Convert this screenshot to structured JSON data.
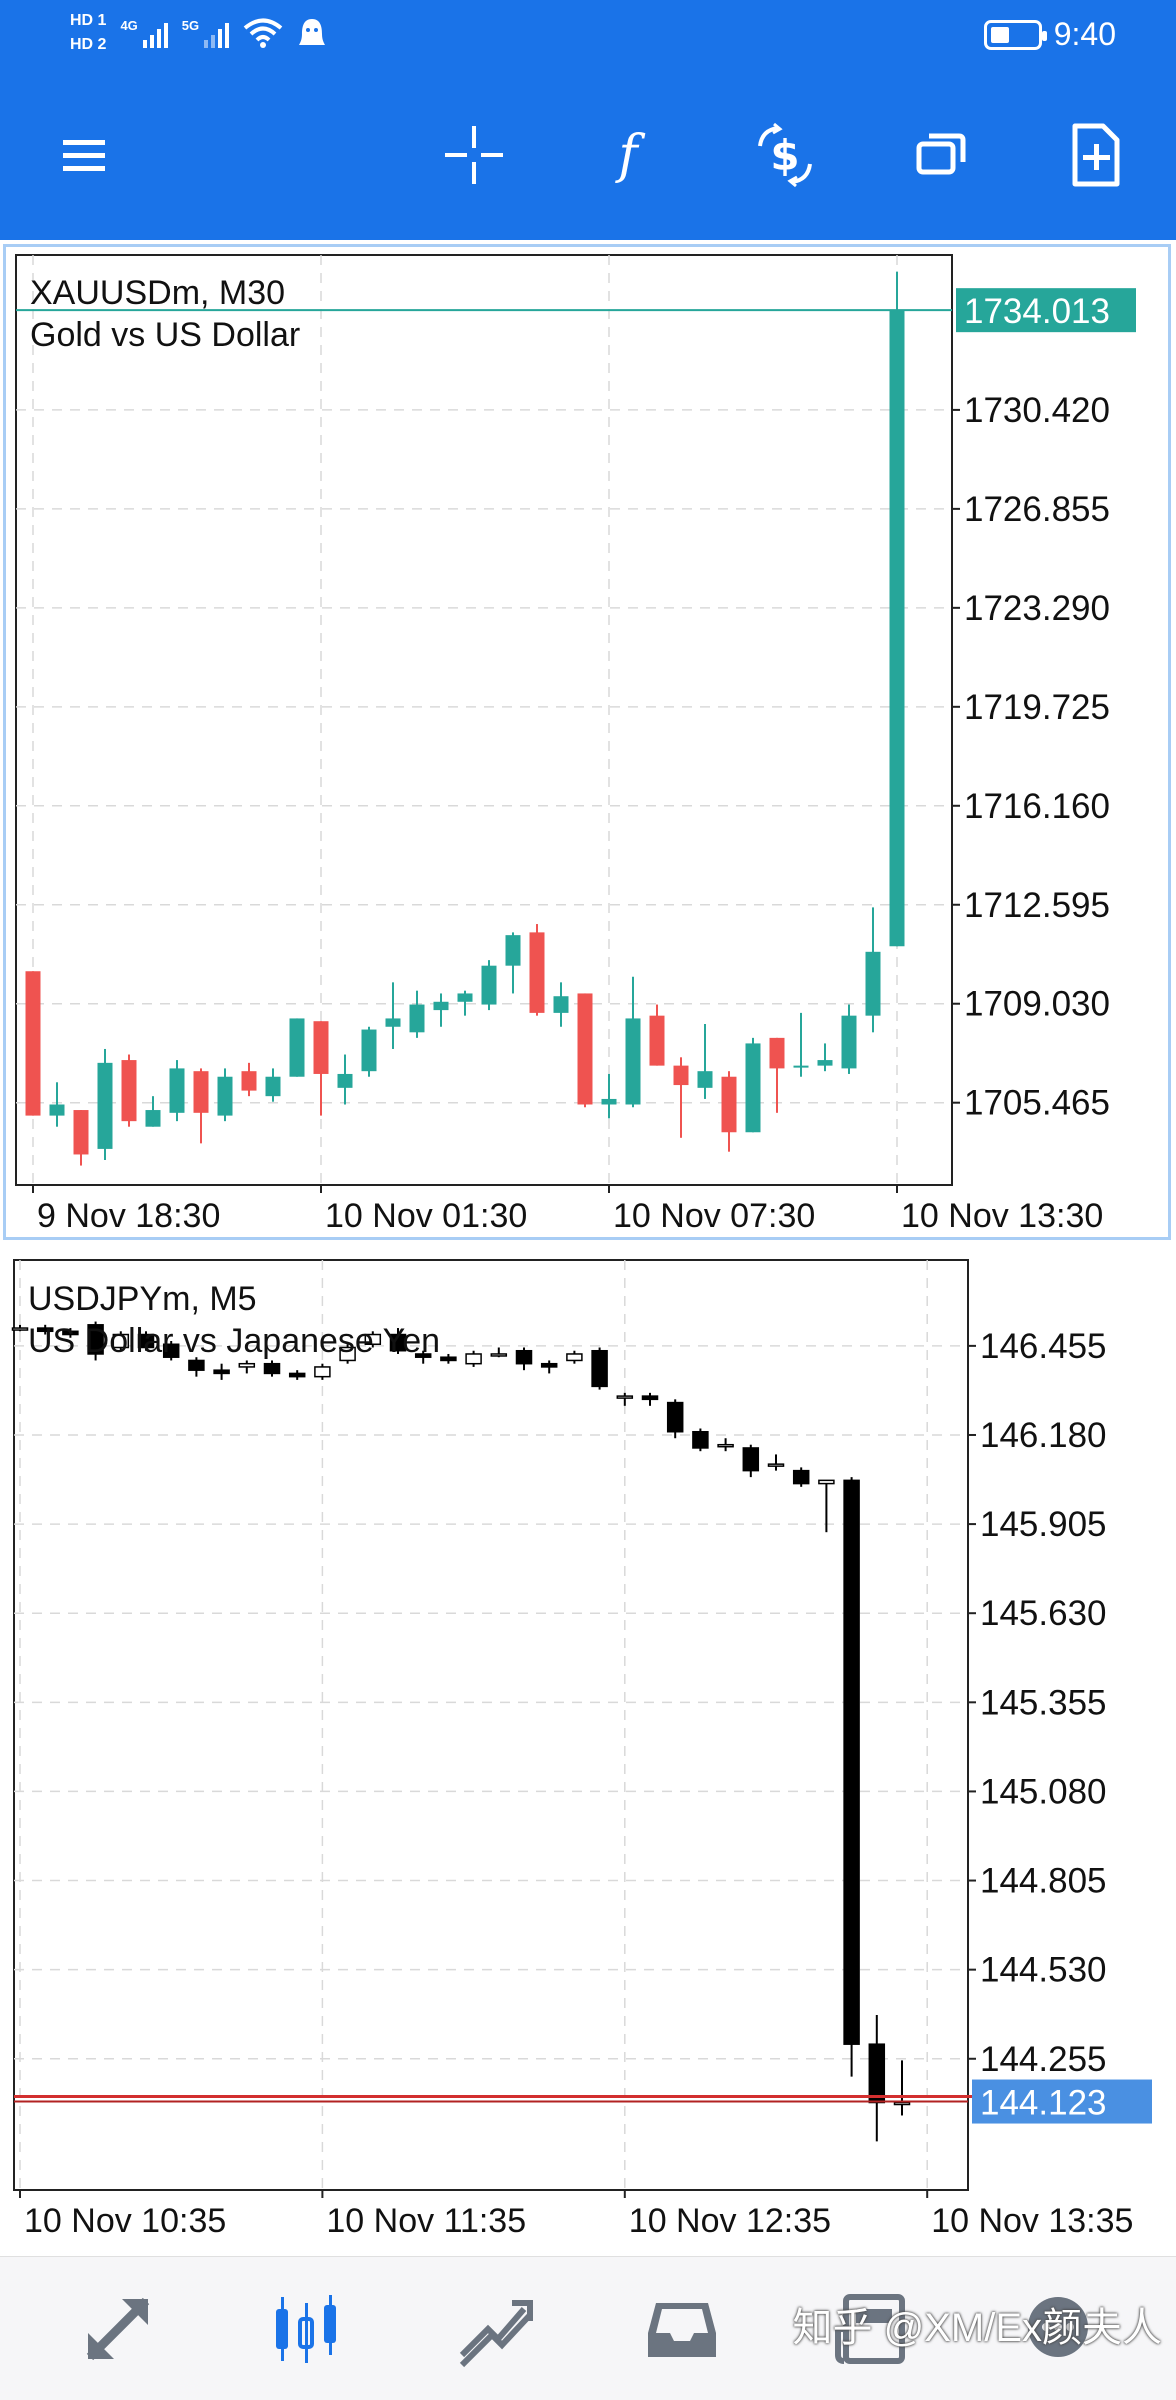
{
  "status_bar": {
    "hd1": "HD 1",
    "hd2": "HD 2",
    "net1": "4G",
    "net2": "5G",
    "time": "9:40",
    "icons": [
      "signal-icon",
      "wifi-icon",
      "notification-icon",
      "battery-icon"
    ]
  },
  "toolbar": {
    "buttons": [
      {
        "icon": "menu-icon"
      },
      {
        "icon": "crosshair-icon"
      },
      {
        "icon": "indicators-f-icon"
      },
      {
        "icon": "trade-dollar-icon"
      },
      {
        "icon": "windows-icon"
      },
      {
        "icon": "objects-add-icon"
      }
    ],
    "bg_color": "#1a73e8"
  },
  "charts": {
    "gold": {
      "symbol_line": "XAUUSDm, M30",
      "description": "Gold vs US Dollar",
      "price_tag": "1734.013",
      "price_tag_color": "#26a69a"
    },
    "usdjpy": {
      "symbol_line": "USDJPYm, M5",
      "description": "US Dollar vs Japanese Yen",
      "price_tag": "144.123",
      "price_tag_color": "#4a90e2"
    }
  },
  "chart_data": [
    {
      "type": "candlestick",
      "title": "XAUUSDm, M30",
      "subtitle": "Gold vs US Dollar",
      "ylim": [
        1702.5,
        1736.0
      ],
      "y_ticks": [
        "1730.420",
        "1726.855",
        "1723.290",
        "1719.725",
        "1716.160",
        "1712.595",
        "1709.030",
        "1705.465"
      ],
      "x_ticks": [
        "9 Nov 18:30",
        "10 Nov 01:30",
        "10 Nov 07:30",
        "10 Nov 13:30"
      ],
      "x_tick_index": [
        0,
        12,
        24,
        36
      ],
      "current_price": 1734.013,
      "up_color": "#26a69a",
      "down_color": "#ef5350",
      "candles": [
        {
          "o": 1710.2,
          "h": 1710.2,
          "l": 1705.0,
          "c": 1705.0
        },
        {
          "o": 1705.0,
          "h": 1706.2,
          "l": 1704.6,
          "c": 1705.4
        },
        {
          "o": 1705.2,
          "h": 1705.2,
          "l": 1703.2,
          "c": 1703.6
        },
        {
          "o": 1703.8,
          "h": 1707.4,
          "l": 1703.4,
          "c": 1706.9
        },
        {
          "o": 1707.0,
          "h": 1707.2,
          "l": 1704.6,
          "c": 1704.8
        },
        {
          "o": 1704.6,
          "h": 1705.7,
          "l": 1704.6,
          "c": 1705.2
        },
        {
          "o": 1705.1,
          "h": 1707.0,
          "l": 1704.8,
          "c": 1706.7
        },
        {
          "o": 1706.6,
          "h": 1706.7,
          "l": 1704.0,
          "c": 1705.1
        },
        {
          "o": 1705.0,
          "h": 1706.7,
          "l": 1704.8,
          "c": 1706.4
        },
        {
          "o": 1706.6,
          "h": 1706.9,
          "l": 1705.7,
          "c": 1705.9
        },
        {
          "o": 1705.7,
          "h": 1706.7,
          "l": 1705.5,
          "c": 1706.4
        },
        {
          "o": 1706.4,
          "h": 1708.5,
          "l": 1706.4,
          "c": 1708.5
        },
        {
          "o": 1708.4,
          "h": 1708.4,
          "l": 1705.0,
          "c": 1706.5
        },
        {
          "o": 1706.0,
          "h": 1707.2,
          "l": 1705.4,
          "c": 1706.5
        },
        {
          "o": 1706.6,
          "h": 1708.2,
          "l": 1706.4,
          "c": 1708.1
        },
        {
          "o": 1708.2,
          "h": 1709.8,
          "l": 1707.4,
          "c": 1708.5
        },
        {
          "o": 1708.0,
          "h": 1709.5,
          "l": 1707.8,
          "c": 1709.0
        },
        {
          "o": 1708.8,
          "h": 1709.4,
          "l": 1708.2,
          "c": 1709.1
        },
        {
          "o": 1709.1,
          "h": 1709.5,
          "l": 1708.6,
          "c": 1709.4
        },
        {
          "o": 1709.0,
          "h": 1710.6,
          "l": 1708.8,
          "c": 1710.4
        },
        {
          "o": 1710.4,
          "h": 1711.6,
          "l": 1709.4,
          "c": 1711.5
        },
        {
          "o": 1711.6,
          "h": 1711.9,
          "l": 1708.6,
          "c": 1708.7
        },
        {
          "o": 1708.7,
          "h": 1709.8,
          "l": 1708.2,
          "c": 1709.3
        },
        {
          "o": 1709.4,
          "h": 1709.4,
          "l": 1705.3,
          "c": 1705.4
        },
        {
          "o": 1705.4,
          "h": 1706.5,
          "l": 1704.9,
          "c": 1705.6
        },
        {
          "o": 1705.4,
          "h": 1710.0,
          "l": 1705.3,
          "c": 1708.5
        },
        {
          "o": 1708.6,
          "h": 1709.0,
          "l": 1706.8,
          "c": 1706.8
        },
        {
          "o": 1706.8,
          "h": 1707.1,
          "l": 1704.2,
          "c": 1706.1
        },
        {
          "o": 1706.0,
          "h": 1708.3,
          "l": 1705.6,
          "c": 1706.6
        },
        {
          "o": 1706.4,
          "h": 1706.6,
          "l": 1703.7,
          "c": 1704.4
        },
        {
          "o": 1704.4,
          "h": 1707.8,
          "l": 1704.4,
          "c": 1707.6
        },
        {
          "o": 1707.8,
          "h": 1707.8,
          "l": 1705.1,
          "c": 1706.7
        },
        {
          "o": 1706.8,
          "h": 1708.7,
          "l": 1706.4,
          "c": 1706.8
        },
        {
          "o": 1706.8,
          "h": 1707.6,
          "l": 1706.6,
          "c": 1707.0
        },
        {
          "o": 1706.7,
          "h": 1709.0,
          "l": 1706.5,
          "c": 1708.6
        },
        {
          "o": 1708.6,
          "h": 1712.5,
          "l": 1708.0,
          "c": 1710.9
        },
        {
          "o": 1711.1,
          "h": 1735.4,
          "l": 1711.1,
          "c": 1734.0
        }
      ]
    },
    {
      "type": "candlestick",
      "title": "USDJPYm, M5",
      "subtitle": "US Dollar vs Japanese Yen",
      "ylim": [
        143.85,
        146.72
      ],
      "y_ticks": [
        "146.455",
        "146.180",
        "145.905",
        "145.630",
        "145.355",
        "145.080",
        "144.805",
        "144.530",
        "144.255"
      ],
      "x_ticks": [
        "10 Nov 10:35",
        "10 Nov 11:35",
        "10 Nov 12:35",
        "10 Nov 13:35"
      ],
      "x_tick_index": [
        0,
        12,
        24,
        36
      ],
      "current_price": 144.123,
      "up_color": "#ffffff",
      "down_color": "#000000",
      "candles": [
        {
          "o": 146.51,
          "h": 146.52,
          "l": 146.5,
          "c": 146.51
        },
        {
          "o": 146.51,
          "h": 146.52,
          "l": 146.49,
          "c": 146.5
        },
        {
          "o": 146.5,
          "h": 146.51,
          "l": 146.48,
          "c": 146.49
        },
        {
          "o": 146.52,
          "h": 146.53,
          "l": 146.41,
          "c": 146.43
        },
        {
          "o": 146.45,
          "h": 146.5,
          "l": 146.44,
          "c": 146.49
        },
        {
          "o": 146.49,
          "h": 146.5,
          "l": 146.44,
          "c": 146.45
        },
        {
          "o": 146.46,
          "h": 146.47,
          "l": 146.41,
          "c": 146.42
        },
        {
          "o": 146.41,
          "h": 146.42,
          "l": 146.36,
          "c": 146.38
        },
        {
          "o": 146.38,
          "h": 146.4,
          "l": 146.35,
          "c": 146.37
        },
        {
          "o": 146.39,
          "h": 146.41,
          "l": 146.37,
          "c": 146.4
        },
        {
          "o": 146.4,
          "h": 146.41,
          "l": 146.36,
          "c": 146.37
        },
        {
          "o": 146.37,
          "h": 146.38,
          "l": 146.35,
          "c": 146.36
        },
        {
          "o": 146.36,
          "h": 146.4,
          "l": 146.35,
          "c": 146.39
        },
        {
          "o": 146.41,
          "h": 146.46,
          "l": 146.4,
          "c": 146.45
        },
        {
          "o": 146.46,
          "h": 146.5,
          "l": 146.45,
          "c": 146.49
        },
        {
          "o": 146.49,
          "h": 146.51,
          "l": 146.43,
          "c": 146.44
        },
        {
          "o": 146.43,
          "h": 146.44,
          "l": 146.4,
          "c": 146.42
        },
        {
          "o": 146.42,
          "h": 146.43,
          "l": 146.4,
          "c": 146.41
        },
        {
          "o": 146.4,
          "h": 146.44,
          "l": 146.39,
          "c": 146.43
        },
        {
          "o": 146.43,
          "h": 146.45,
          "l": 146.42,
          "c": 146.43
        },
        {
          "o": 146.44,
          "h": 146.45,
          "l": 146.38,
          "c": 146.4
        },
        {
          "o": 146.4,
          "h": 146.41,
          "l": 146.37,
          "c": 146.39
        },
        {
          "o": 146.41,
          "h": 146.44,
          "l": 146.4,
          "c": 146.43
        },
        {
          "o": 146.44,
          "h": 146.45,
          "l": 146.32,
          "c": 146.33
        },
        {
          "o": 146.3,
          "h": 146.31,
          "l": 146.27,
          "c": 146.3
        },
        {
          "o": 146.3,
          "h": 146.31,
          "l": 146.27,
          "c": 146.29
        },
        {
          "o": 146.28,
          "h": 146.29,
          "l": 146.17,
          "c": 146.19
        },
        {
          "o": 146.19,
          "h": 146.2,
          "l": 146.13,
          "c": 146.14
        },
        {
          "o": 146.15,
          "h": 146.17,
          "l": 146.13,
          "c": 146.15
        },
        {
          "o": 146.14,
          "h": 146.15,
          "l": 146.05,
          "c": 146.07
        },
        {
          "o": 146.09,
          "h": 146.12,
          "l": 146.07,
          "c": 146.09
        },
        {
          "o": 146.07,
          "h": 146.08,
          "l": 146.02,
          "c": 146.03
        },
        {
          "o": 146.03,
          "h": 146.04,
          "l": 145.88,
          "c": 146.04
        },
        {
          "o": 146.04,
          "h": 146.05,
          "l": 144.2,
          "c": 144.3
        },
        {
          "o": 144.3,
          "h": 144.39,
          "l": 144.0,
          "c": 144.12
        },
        {
          "o": 144.12,
          "h": 144.25,
          "l": 144.08,
          "c": 144.12
        }
      ]
    }
  ],
  "bottom_nav": {
    "items": [
      {
        "icon": "quotes-arrows-icon"
      },
      {
        "icon": "chart-candles-icon",
        "active": true
      },
      {
        "icon": "trade-icon"
      },
      {
        "icon": "history-inbox-icon"
      },
      {
        "icon": "news-icon"
      },
      {
        "icon": "chat-icon"
      }
    ],
    "active_color": "#1a73e8",
    "inactive_color": "#6b7480"
  },
  "watermark": "知乎 @XM/Ex颜夫人"
}
